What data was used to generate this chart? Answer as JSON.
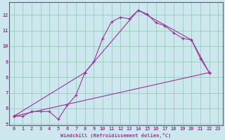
{
  "bg_color": "#cce8ee",
  "line_color": "#993399",
  "grid_color": "#99ccbb",
  "xlabel": "Windchill (Refroidissement éolien,°C)",
  "xlim": [
    -0.5,
    23.5
  ],
  "ylim": [
    4.9,
    12.8
  ],
  "xticks": [
    0,
    1,
    2,
    3,
    4,
    5,
    6,
    7,
    8,
    9,
    10,
    11,
    12,
    13,
    14,
    15,
    16,
    17,
    18,
    19,
    20,
    21,
    22,
    23
  ],
  "yticks": [
    5,
    6,
    7,
    8,
    9,
    10,
    11,
    12
  ],
  "curve1_x": [
    0,
    1,
    2,
    3,
    4,
    5,
    6,
    7,
    8,
    9,
    10,
    11,
    12,
    13,
    14,
    15,
    16,
    17,
    18,
    19,
    20,
    21,
    22
  ],
  "curve1_y": [
    5.5,
    5.5,
    5.8,
    5.8,
    5.8,
    5.3,
    6.2,
    6.85,
    8.3,
    9.0,
    10.5,
    11.55,
    11.85,
    11.75,
    12.3,
    12.05,
    11.5,
    11.3,
    10.85,
    10.5,
    10.4,
    9.2,
    8.3
  ],
  "curve2_x": [
    0,
    8,
    14,
    20,
    22
  ],
  "curve2_y": [
    5.5,
    8.3,
    12.3,
    10.4,
    8.3
  ],
  "curve3_x": [
    0,
    22
  ],
  "curve3_y": [
    5.5,
    8.3
  ]
}
